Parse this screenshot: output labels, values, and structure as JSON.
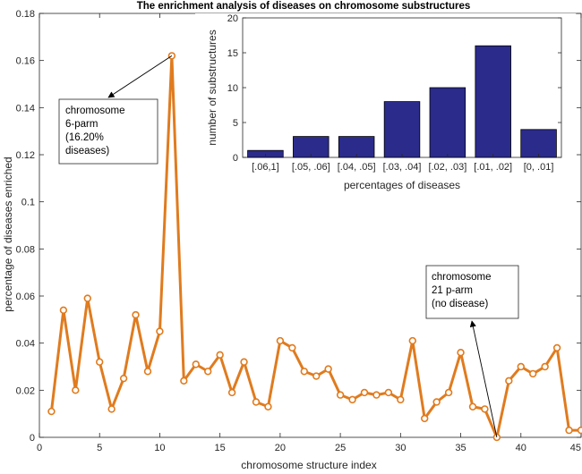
{
  "chart_data": [
    {
      "type": "line",
      "title": "The enrichment analysis of diseases on chromosome substructures",
      "xlabel": "chromosome structure index",
      "ylabel": "percentage of diseases enriched",
      "xlim": [
        0,
        45
      ],
      "ylim": [
        0,
        0.18
      ],
      "xticks": [
        "0",
        "5",
        "10",
        "15",
        "20",
        "25",
        "30",
        "35",
        "40",
        "45"
      ],
      "yticks": [
        "0",
        "0.02",
        "0.04",
        "0.06",
        "0.08",
        "0.1",
        "0.12",
        "0.14",
        "0.16",
        "0.18"
      ],
      "color": "#E07B1E",
      "x": [
        1,
        2,
        3,
        4,
        5,
        6,
        7,
        8,
        9,
        10,
        11,
        12,
        13,
        14,
        15,
        16,
        17,
        18,
        19,
        20,
        21,
        22,
        23,
        24,
        25,
        26,
        27,
        28,
        29,
        30,
        31,
        32,
        33,
        34,
        35,
        36,
        37,
        38,
        39,
        40,
        41,
        42,
        43,
        44,
        45
      ],
      "values": [
        0.011,
        0.054,
        0.02,
        0.059,
        0.032,
        0.012,
        0.025,
        0.052,
        0.028,
        0.045,
        0.162,
        0.024,
        0.031,
        0.028,
        0.035,
        0.019,
        0.032,
        0.015,
        0.013,
        0.041,
        0.038,
        0.028,
        0.026,
        0.029,
        0.018,
        0.016,
        0.019,
        0.018,
        0.019,
        0.016,
        0.041,
        0.008,
        0.015,
        0.019,
        0.036,
        0.013,
        0.012,
        0.0,
        0.024,
        0.03,
        0.027,
        0.03,
        0.038,
        0.003,
        0.003
      ],
      "annotations": [
        {
          "lines": [
            "chromosome",
            "6-parm",
            "(16.20%",
            "diseases)"
          ],
          "point_index": 11
        },
        {
          "lines": [
            "chromosome",
            "21 p-arm",
            "(no disease)"
          ],
          "point_index": 38
        }
      ]
    },
    {
      "type": "bar",
      "title": "",
      "xlabel": "percentages of diseases",
      "ylabel": "number of substructures",
      "categories": [
        "[.06,1]",
        "[.05, .06]",
        "[.04, .05]",
        "[.03, .04]",
        "[.02, .03]",
        "[.01, .02]",
        "[0, .01]"
      ],
      "values": [
        1,
        3,
        3,
        8,
        10,
        16,
        4
      ],
      "ylim": [
        0,
        20
      ],
      "yticks": [
        "0",
        "5",
        "10",
        "15",
        "20"
      ],
      "color": "#2B2B8C"
    }
  ]
}
